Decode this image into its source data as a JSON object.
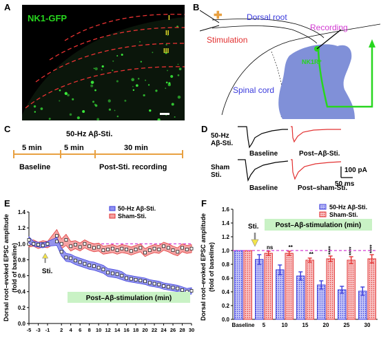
{
  "panels": {
    "A": {
      "letter": "A",
      "title": "NK1-GFP",
      "layers": [
        "I",
        "II",
        "III"
      ]
    },
    "B": {
      "letter": "B",
      "dorsal_root": "Dorsal root",
      "recording": "Recording",
      "stimulation": "Stimulation",
      "nk1r": "NK1R⁺",
      "spinal_cord": "Spinal cord"
    },
    "C": {
      "letter": "C",
      "title": "50-Hz Aβ-Sti.",
      "seg1": "5 min",
      "seg2": "5 min",
      "seg3": "30 min",
      "baseline": "Baseline",
      "post": "Post-Sti. recording"
    },
    "D": {
      "letter": "D",
      "row1_label_a": "50-Hz",
      "row1_label_b": "Aβ-Sti.",
      "row1_baseline": "Baseline",
      "row1_post": "Post–Aβ-Sti.",
      "row2_label_a": "Sham",
      "row2_label_b": "Sti.",
      "row2_baseline": "Baseline",
      "row2_post": "Post–sham-Sti.",
      "scale_y": "100 pA",
      "scale_x": "50 ms"
    },
    "E": {
      "letter": "E",
      "sti_label": "Sti.",
      "banner": "Post–Aβ-stimulation (min)"
    },
    "F": {
      "letter": "F",
      "sti_label": "Sti.",
      "banner": "Post–Aβ-stimulation (min)"
    }
  },
  "colors": {
    "blue": "#3a3adc",
    "blue_fill": "#8f92f0",
    "red": "#e23030",
    "red_fill": "#f4a0a0",
    "magenta": "#d23ad2",
    "green": "#27d61e",
    "orange": "#e8a040",
    "banner": "#c9f2c5",
    "cord": "#8090d8"
  },
  "chart_data": [
    {
      "type": "line",
      "panel": "E",
      "ylabel": "Dorsal root–evoked EPSC amplitude (fold of baseline)",
      "xlabel": "",
      "ylim": [
        0,
        1.4
      ],
      "yticks": [
        0,
        0.2,
        0.4,
        0.6,
        0.8,
        1.0,
        1.2,
        1.4
      ],
      "xticks": [
        -5,
        -3,
        -1,
        2,
        4,
        6,
        8,
        10,
        12,
        14,
        16,
        18,
        20,
        22,
        24,
        26,
        28,
        30
      ],
      "reference_line": 1.0,
      "legend_position": "top-right",
      "series": [
        {
          "name": "50-Hz Aβ-Sti.",
          "x": [
            -5,
            -4,
            -3,
            -2,
            -1,
            1,
            2,
            3,
            4,
            5,
            6,
            7,
            8,
            9,
            10,
            11,
            12,
            13,
            14,
            15,
            16,
            17,
            18,
            19,
            20,
            21,
            22,
            23,
            24,
            25,
            26,
            27,
            28,
            29,
            30
          ],
          "values": [
            1.05,
            1.0,
            0.99,
            0.98,
            1.0,
            1.03,
            0.9,
            0.83,
            0.82,
            0.79,
            0.77,
            0.75,
            0.73,
            0.72,
            0.7,
            0.68,
            0.64,
            0.63,
            0.62,
            0.6,
            0.57,
            0.56,
            0.55,
            0.54,
            0.53,
            0.51,
            0.5,
            0.49,
            0.47,
            0.46,
            0.45,
            0.44,
            0.42,
            0.4,
            0.41
          ],
          "err": [
            0.04,
            0.03,
            0.03,
            0.03,
            0.03,
            0.05,
            0.05,
            0.05,
            0.05,
            0.05,
            0.05,
            0.05,
            0.05,
            0.05,
            0.05,
            0.05,
            0.05,
            0.05,
            0.05,
            0.05,
            0.04,
            0.04,
            0.04,
            0.04,
            0.04,
            0.04,
            0.04,
            0.04,
            0.04,
            0.04,
            0.04,
            0.04,
            0.04,
            0.04,
            0.04
          ]
        },
        {
          "name": "Sham-Sti.",
          "x": [
            -5,
            -4,
            -3,
            -2,
            -1,
            1,
            2,
            3,
            4,
            5,
            6,
            7,
            8,
            9,
            10,
            11,
            12,
            13,
            14,
            15,
            16,
            17,
            18,
            19,
            20,
            21,
            22,
            23,
            24,
            25,
            26,
            27,
            28,
            29,
            30
          ],
          "values": [
            1.0,
            1.01,
            0.98,
            1.0,
            0.99,
            1.1,
            1.0,
            1.05,
            0.97,
            0.99,
            0.96,
            1.0,
            0.97,
            0.95,
            0.96,
            0.92,
            0.93,
            0.94,
            0.92,
            0.94,
            0.93,
            0.91,
            0.93,
            0.95,
            0.89,
            0.92,
            0.94,
            0.93,
            0.97,
            0.95,
            0.92,
            0.9,
            0.95,
            0.93,
            0.94
          ],
          "err": [
            0.04,
            0.04,
            0.04,
            0.04,
            0.04,
            0.08,
            0.06,
            0.07,
            0.06,
            0.05,
            0.05,
            0.05,
            0.05,
            0.05,
            0.05,
            0.05,
            0.05,
            0.05,
            0.05,
            0.05,
            0.05,
            0.05,
            0.05,
            0.05,
            0.05,
            0.05,
            0.05,
            0.05,
            0.05,
            0.05,
            0.05,
            0.05,
            0.05,
            0.05,
            0.05
          ]
        }
      ]
    },
    {
      "type": "bar",
      "panel": "F",
      "ylabel": "Dorsal root–evoked EPSC amplitude (fold of baseline)",
      "xlabel": "",
      "ylim": [
        0,
        1.6
      ],
      "yticks": [
        0,
        0.2,
        0.4,
        0.6,
        0.8,
        1.0,
        1.2,
        1.4,
        1.6
      ],
      "categories": [
        "Baseline",
        "5",
        "10",
        "15",
        "20",
        "25",
        "30"
      ],
      "reference_line": 1.0,
      "legend_position": "top-right",
      "significance": [
        "",
        "ns",
        "**",
        "**",
        "****",
        "****",
        "****"
      ],
      "series": [
        {
          "name": "50-Hz Aβ-Sti.",
          "values": [
            1.0,
            0.87,
            0.72,
            0.63,
            0.5,
            0.43,
            0.41
          ],
          "err": [
            0,
            0.07,
            0.07,
            0.06,
            0.06,
            0.05,
            0.06
          ]
        },
        {
          "name": "Sham-Sti.",
          "values": [
            1.0,
            0.96,
            0.96,
            0.86,
            0.88,
            0.86,
            0.88
          ],
          "err": [
            0,
            0.03,
            0.03,
            0.03,
            0.04,
            0.05,
            0.06
          ]
        }
      ]
    }
  ]
}
